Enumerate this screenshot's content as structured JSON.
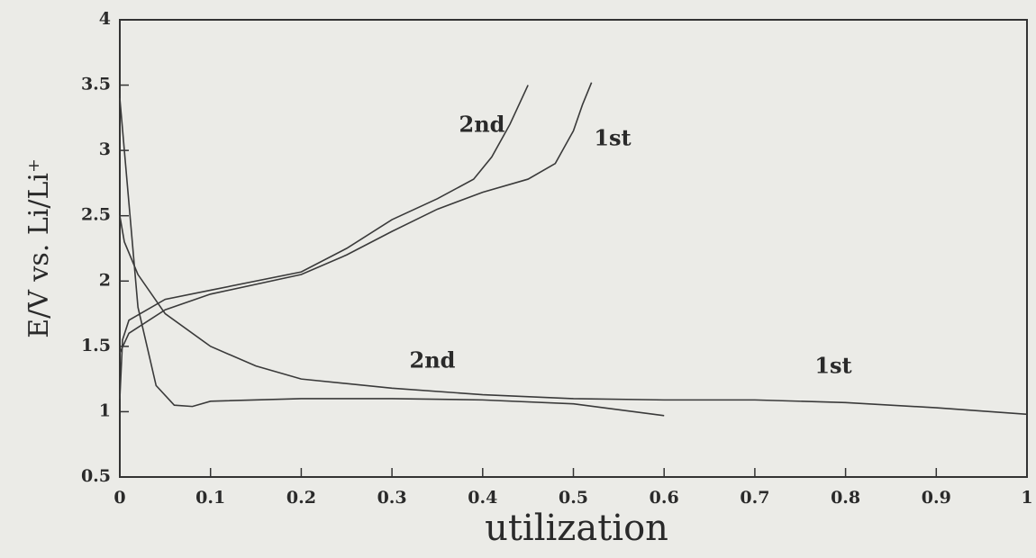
{
  "chart_data": {
    "type": "line",
    "xlabel": "utilization",
    "ylabel": "E/V vs. Li/Li⁺",
    "xlim": [
      0,
      1
    ],
    "ylim": [
      0.5,
      4
    ],
    "xticks": [
      0,
      0.1,
      0.2,
      0.3,
      0.4,
      0.5,
      0.6,
      0.7,
      0.8,
      0.9,
      1
    ],
    "yticks": [
      0.5,
      1,
      1.5,
      2,
      2.5,
      3,
      3.5,
      4
    ],
    "annotations": [
      "2nd",
      "1st",
      "2nd",
      "1st"
    ],
    "series": [
      {
        "color": "#3a3a3a",
        "x": [
          0.52,
          0.51,
          0.5,
          0.48,
          0.45,
          0.4,
          0.35,
          0.3,
          0.25,
          0.2,
          0.1,
          0.05,
          0.01,
          0
        ],
        "values": [
          3.52,
          3.35,
          3.15,
          2.9,
          2.78,
          2.68,
          2.55,
          2.38,
          2.2,
          2.05,
          1.9,
          1.78,
          1.6,
          1.45
        ]
      },
      {
        "color": "#3a3a3a",
        "x": [
          0.45,
          0.43,
          0.41,
          0.39,
          0.35,
          0.3,
          0.25,
          0.2,
          0.1,
          0.05,
          0.01,
          0.003,
          0
        ],
        "values": [
          3.5,
          3.2,
          2.95,
          2.78,
          2.63,
          2.47,
          2.25,
          2.07,
          1.93,
          1.86,
          1.7,
          1.55,
          1.1
        ]
      },
      {
        "color": "#3a3a3a",
        "x": [
          0,
          0.005,
          0.02,
          0.05,
          0.1,
          0.15,
          0.2,
          0.3,
          0.4,
          0.5,
          0.6,
          0.7,
          0.8,
          0.9,
          1
        ],
        "values": [
          2.5,
          2.3,
          2.05,
          1.75,
          1.5,
          1.35,
          1.25,
          1.18,
          1.13,
          1.1,
          1.09,
          1.09,
          1.07,
          1.03,
          0.98
        ]
      },
      {
        "color": "#3a3a3a",
        "x": [
          0,
          0.01,
          0.02,
          0.04,
          0.06,
          0.08,
          0.1,
          0.2,
          0.3,
          0.4,
          0.5,
          0.6
        ],
        "values": [
          3.4,
          2.6,
          1.8,
          1.2,
          1.05,
          1.04,
          1.08,
          1.1,
          1.1,
          1.09,
          1.06,
          0.97
        ]
      }
    ]
  }
}
